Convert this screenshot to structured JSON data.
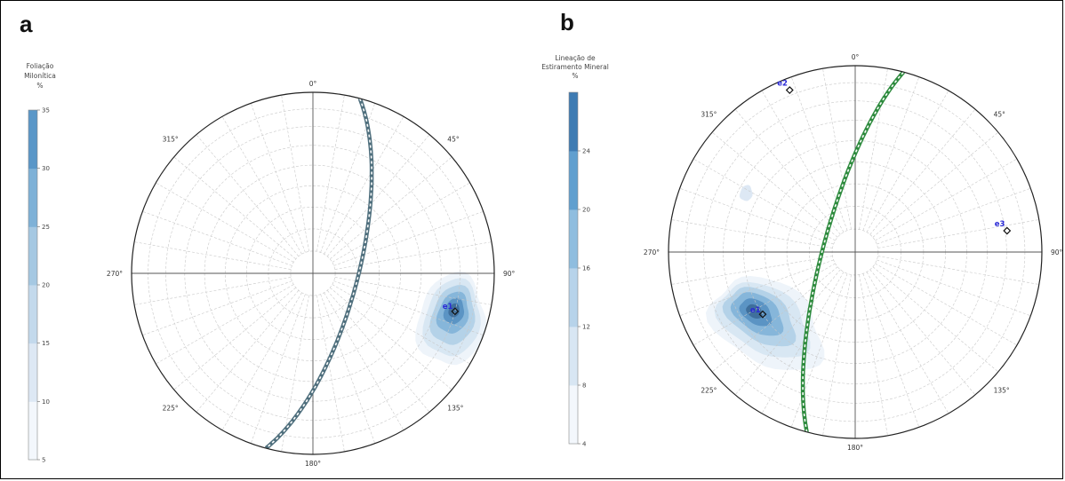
{
  "panels": [
    {
      "letter": "a",
      "colorbar": {
        "title_lines": [
          "Foliação",
          "Milonítica",
          "%"
        ],
        "ticks": [
          5,
          10,
          15,
          20,
          25,
          30,
          35
        ],
        "range": [
          5,
          35
        ]
      },
      "net": {
        "directions": [
          "0°",
          "45°",
          "90°",
          "135°",
          "180°",
          "225°",
          "270°",
          "315°"
        ],
        "great_circle": {
          "dip_direction": 105,
          "dip": 70,
          "color": "#4f6f7d"
        },
        "eigenvectors": [
          {
            "label": "e1",
            "trend": 105,
            "plunge": 20
          }
        ]
      }
    },
    {
      "letter": "b",
      "colorbar": {
        "title_lines": [
          "Lineação de",
          "Estiramento Mineral",
          "%"
        ],
        "ticks": [
          4,
          8,
          12,
          16,
          20,
          24
        ],
        "range": [
          4,
          28
        ]
      },
      "net": {
        "directions": [
          "0°",
          "45°",
          "90°",
          "135°",
          "180°",
          "225°",
          "270°",
          "315°"
        ],
        "great_circle": {
          "dip_direction": 285,
          "dip": 76,
          "color": "#2e8b3e"
        },
        "eigenvectors": [
          {
            "label": "e1",
            "trend": 236,
            "plunge": 40
          },
          {
            "label": "e2",
            "trend": 338,
            "plunge": 7
          },
          {
            "label": "e3",
            "trend": 82,
            "plunge": 19
          }
        ]
      }
    }
  ],
  "chart_data": [
    {
      "type": "heatmap",
      "panel": "a",
      "projection": "equal-area lower hemisphere",
      "legend_title": "Foliação Milonítica %",
      "density_range": [
        5,
        35
      ],
      "colorbar_ticks": [
        5,
        10,
        15,
        20,
        25,
        30,
        35
      ],
      "density_maximum": {
        "trend": 105,
        "plunge": 20
      },
      "great_circle": {
        "dip_direction": 105,
        "dip": 70
      },
      "eigenvectors": [
        {
          "label": "e1",
          "trend": 105,
          "plunge": 20
        }
      ]
    },
    {
      "type": "heatmap",
      "panel": "b",
      "projection": "equal-area lower hemisphere",
      "legend_title": "Lineação de Estiramento Mineral %",
      "density_range": [
        4,
        28
      ],
      "colorbar_ticks": [
        4,
        8,
        12,
        16,
        20,
        24
      ],
      "density_maximum": {
        "trend": 238,
        "plunge": 38
      },
      "great_circle": {
        "dip_direction": 285,
        "dip": 76
      },
      "eigenvectors": [
        {
          "label": "e1",
          "trend": 236,
          "plunge": 40
        },
        {
          "label": "e2",
          "trend": 338,
          "plunge": 7
        },
        {
          "label": "e3",
          "trend": 82,
          "plunge": 19
        }
      ]
    }
  ]
}
